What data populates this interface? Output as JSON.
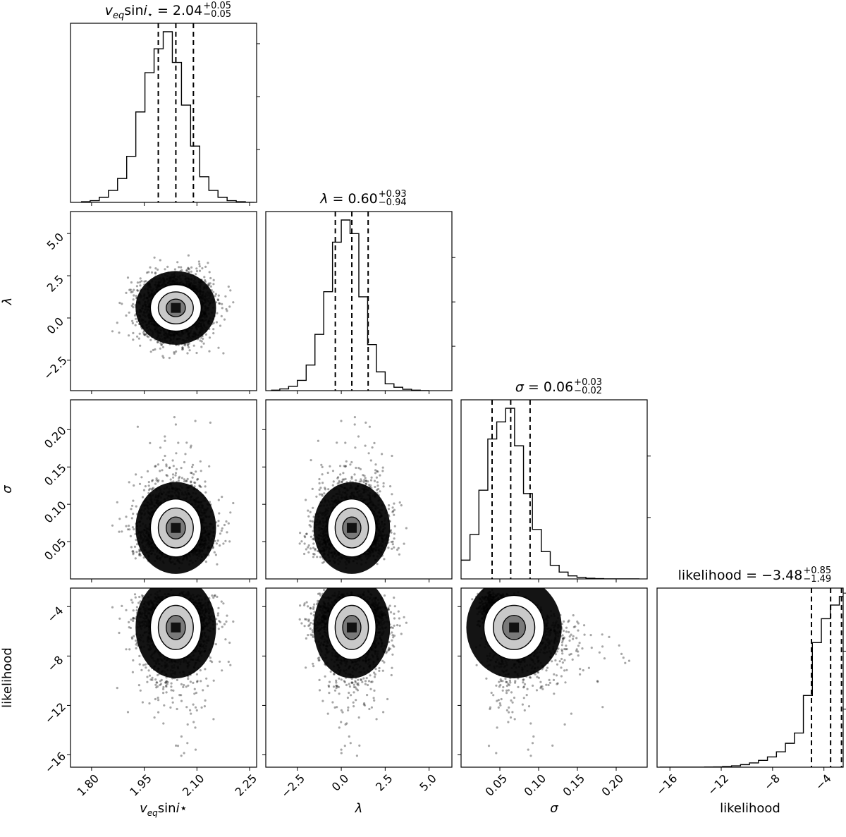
{
  "chart_data": {
    "type": "corner",
    "parameters": [
      {
        "key": "vsini",
        "axis_label": {
          "main": "v",
          "sub": "eq",
          "mid": "sin",
          "it": "i",
          "end": "⋆"
        },
        "title": {
          "value": "2.04",
          "plus": "+0.05",
          "minus": "−0.05"
        },
        "range": [
          1.74,
          2.27
        ],
        "ticks": [
          1.8,
          1.95,
          2.1,
          2.25
        ],
        "tick_labels": [
          "1.80",
          "1.95",
          "2.10",
          "2.25"
        ],
        "quantiles": [
          1.99,
          2.04,
          2.09
        ],
        "hist_edges": [
          1.77,
          1.796,
          1.822,
          1.848,
          1.874,
          1.9,
          1.926,
          1.952,
          1.978,
          2.004,
          2.03,
          2.056,
          2.082,
          2.108,
          2.134,
          2.16,
          2.186,
          2.212,
          2.238,
          2.264
        ],
        "hist_values": [
          0.004,
          0.01,
          0.03,
          0.07,
          0.14,
          0.27,
          0.53,
          0.76,
          0.9,
          1.0,
          0.82,
          0.57,
          0.33,
          0.15,
          0.07,
          0.03,
          0.01,
          0.004,
          0.0
        ],
        "yticks": [
          0.31,
          0.62,
          0.93
        ]
      },
      {
        "key": "lambda",
        "axis_label": {
          "main": "λ"
        },
        "title": {
          "label": "λ",
          "value": "0.60",
          "plus": "+0.93",
          "minus": "−0.94"
        },
        "range": [
          -4.3,
          6.3
        ],
        "ticks": [
          -2.5,
          0.0,
          2.5,
          5.0
        ],
        "tick_labels": [
          "−2.5",
          "0.0",
          "2.5",
          "5.0"
        ],
        "quantiles": [
          -0.34,
          0.6,
          1.53
        ],
        "hist_edges": [
          -4.0,
          -3.5,
          -3.0,
          -2.5,
          -2.0,
          -1.5,
          -1.0,
          -0.5,
          0.0,
          0.5,
          1.0,
          1.5,
          2.0,
          2.5,
          3.0,
          3.5,
          4.0,
          4.5,
          5.0
        ],
        "hist_values": [
          0.003,
          0.01,
          0.025,
          0.06,
          0.15,
          0.33,
          0.58,
          0.87,
          1.0,
          0.92,
          0.55,
          0.27,
          0.11,
          0.04,
          0.02,
          0.008,
          0.003,
          0.0
        ],
        "yticks": [
          0.26,
          0.52,
          0.78
        ]
      },
      {
        "key": "sigma",
        "axis_label": {
          "main": "σ"
        },
        "title": {
          "label": "σ",
          "value": "0.06",
          "plus": "+0.03",
          "minus": "−0.02"
        },
        "range": [
          0.0,
          0.24
        ],
        "ticks": [
          0.05,
          0.1,
          0.15,
          0.2
        ],
        "tick_labels": [
          "0.05",
          "0.10",
          "0.15",
          "0.20"
        ],
        "quantiles": [
          0.04,
          0.064,
          0.089
        ],
        "hist_edges": [
          0.0,
          0.0115,
          0.023,
          0.0345,
          0.046,
          0.0575,
          0.069,
          0.0805,
          0.092,
          0.1035,
          0.115,
          0.1265,
          0.138,
          0.1495,
          0.161,
          0.1725,
          0.184,
          0.1955,
          0.207,
          0.2185,
          0.23
        ],
        "hist_values": [
          0.11,
          0.26,
          0.52,
          0.82,
          0.92,
          1.0,
          0.78,
          0.5,
          0.29,
          0.16,
          0.08,
          0.04,
          0.018,
          0.009,
          0.004,
          0.002,
          0.0,
          0.0,
          0.0,
          0.0
        ],
        "yticks": [
          0.36,
          0.72,
          1.08
        ]
      },
      {
        "key": "likelihood",
        "axis_label": {
          "main": "likelihood"
        },
        "title": {
          "label": "likelihood",
          "value": "−3.48",
          "plus": "+0.85",
          "minus": "−1.49"
        },
        "range": [
          -17.0,
          -2.5
        ],
        "ticks": [
          -16,
          -12,
          -8,
          -4
        ],
        "tick_labels": [
          "−16",
          "−12",
          "−8",
          "−4"
        ],
        "quantiles": [
          -4.97,
          -3.48,
          -2.63
        ],
        "hist_edges": [
          -16.8,
          -16.1,
          -15.4,
          -14.7,
          -14.0,
          -13.3,
          -12.6,
          -11.9,
          -11.2,
          -10.5,
          -9.8,
          -9.1,
          -8.4,
          -7.7,
          -7.0,
          -6.3,
          -5.6,
          -4.9,
          -4.2,
          -3.5,
          -2.8,
          -2.5
        ],
        "hist_values": [
          0.0,
          0.0,
          0.0,
          0.0,
          0.0,
          0.001,
          0.002,
          0.004,
          0.008,
          0.015,
          0.025,
          0.04,
          0.06,
          0.09,
          0.14,
          0.2,
          0.42,
          0.73,
          0.87,
          0.95,
          1.0
        ],
        "yticks": [
          0.34,
          0.68,
          1.02
        ]
      }
    ]
  }
}
